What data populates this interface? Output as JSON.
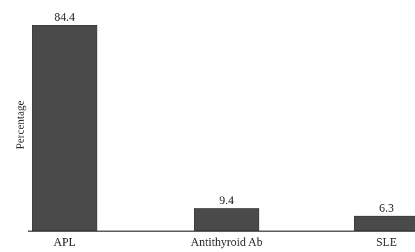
{
  "chart_data": {
    "type": "bar",
    "title": "",
    "xlabel": "",
    "ylabel": "Percentage",
    "categories": [
      "APL",
      "Antithyroid Ab",
      "SLE"
    ],
    "values": [
      84.4,
      9.4,
      6.3
    ],
    "value_labels": [
      "84.4",
      "9.4",
      "6.3"
    ],
    "ylim": [
      0,
      84.4
    ],
    "grid": false,
    "legend": "none",
    "bar_color": "#4a4a4a",
    "axis_color": "#2b2b2b"
  }
}
